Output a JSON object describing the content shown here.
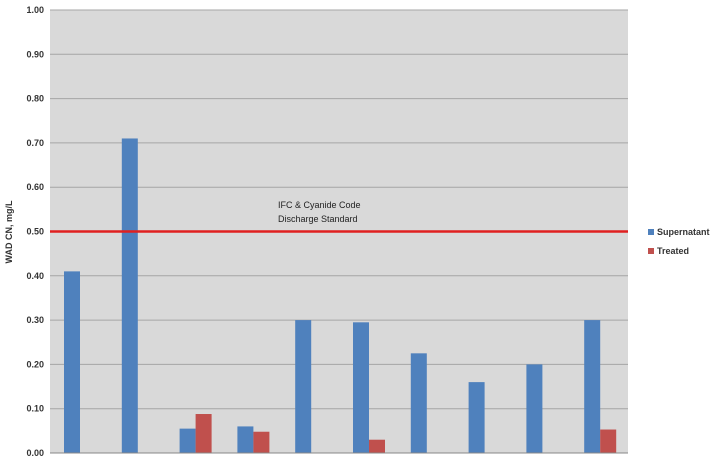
{
  "chart_data": {
    "type": "bar",
    "title": "",
    "xlabel": "",
    "ylabel": "WAD CN, mg/L",
    "ylim": [
      0,
      1.0
    ],
    "yticks": [
      "0.00",
      "0.10",
      "0.20",
      "0.30",
      "0.40",
      "0.50",
      "0.60",
      "0.70",
      "0.80",
      "0.90",
      "1.00"
    ],
    "grid": true,
    "categories": [
      "",
      "",
      "",
      "",
      "",
      "",
      "",
      "",
      "",
      ""
    ],
    "series": [
      {
        "name": "Supernatant",
        "color": "#4f81bd",
        "values": [
          0.41,
          0.71,
          0.055,
          0.06,
          0.3,
          0.295,
          0.225,
          0.16,
          0.2,
          0.3
        ]
      },
      {
        "name": "Treated",
        "color": "#c0504d",
        "values": [
          null,
          null,
          0.088,
          0.048,
          null,
          0.03,
          null,
          null,
          null,
          0.053
        ]
      }
    ],
    "reference_line": {
      "value": 0.5,
      "color": "#e02020"
    },
    "annotation_lines": [
      "IFC & Cyanide Code",
      "Discharge Standard"
    ],
    "legend_position": "right",
    "plot_background": "#d9d9d9"
  }
}
